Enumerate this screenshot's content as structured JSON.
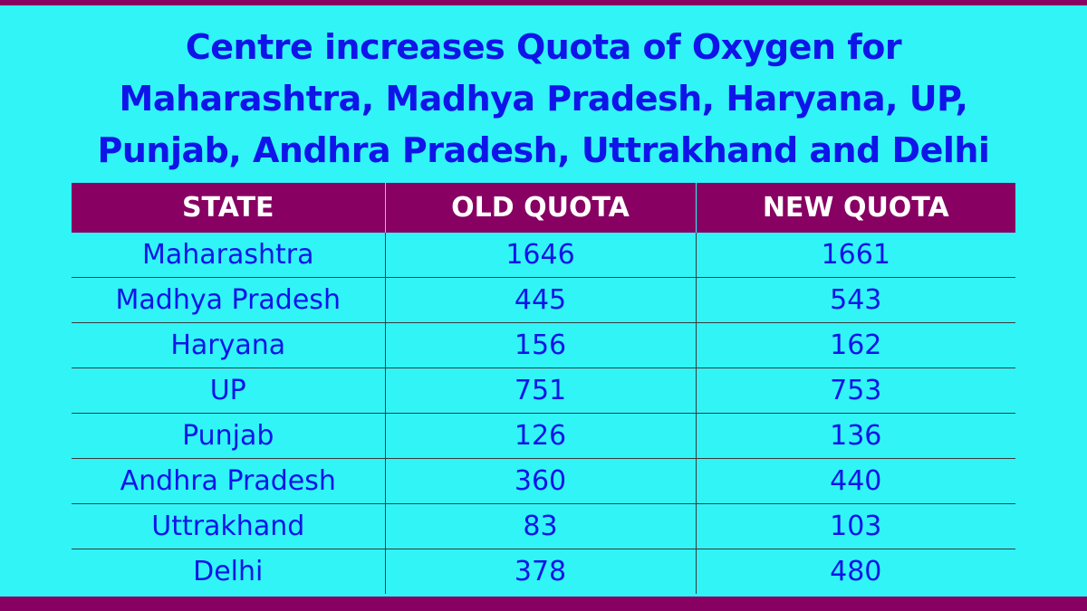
{
  "headline": {
    "line1": "Centre increases Quota of Oxygen for",
    "line2": "Maharashtra, Madhya Pradesh, Haryana, UP,",
    "line3": "Punjab, Andhra Pradesh, Uttrakhand and Delhi"
  },
  "table": {
    "headers": [
      "STATE",
      "OLD QUOTA",
      "NEW QUOTA"
    ],
    "rows": [
      {
        "state": "Maharashtra",
        "old": "1646",
        "new": "1661"
      },
      {
        "state": "Madhya Pradesh",
        "old": "445",
        "new": "543"
      },
      {
        "state": "Haryana",
        "old": "156",
        "new": "162"
      },
      {
        "state": "UP",
        "old": "751",
        "new": "753"
      },
      {
        "state": "Punjab",
        "old": "126",
        "new": "136"
      },
      {
        "state": "Andhra Pradesh",
        "old": "360",
        "new": "440"
      },
      {
        "state": "Uttrakhand",
        "old": "83",
        "new": "103"
      },
      {
        "state": "Delhi",
        "old": "378",
        "new": "480"
      }
    ]
  },
  "colors": {
    "background": "#31f4f7",
    "accent": "#870062",
    "text": "#0f15e8",
    "header_text": "#ffffff"
  }
}
